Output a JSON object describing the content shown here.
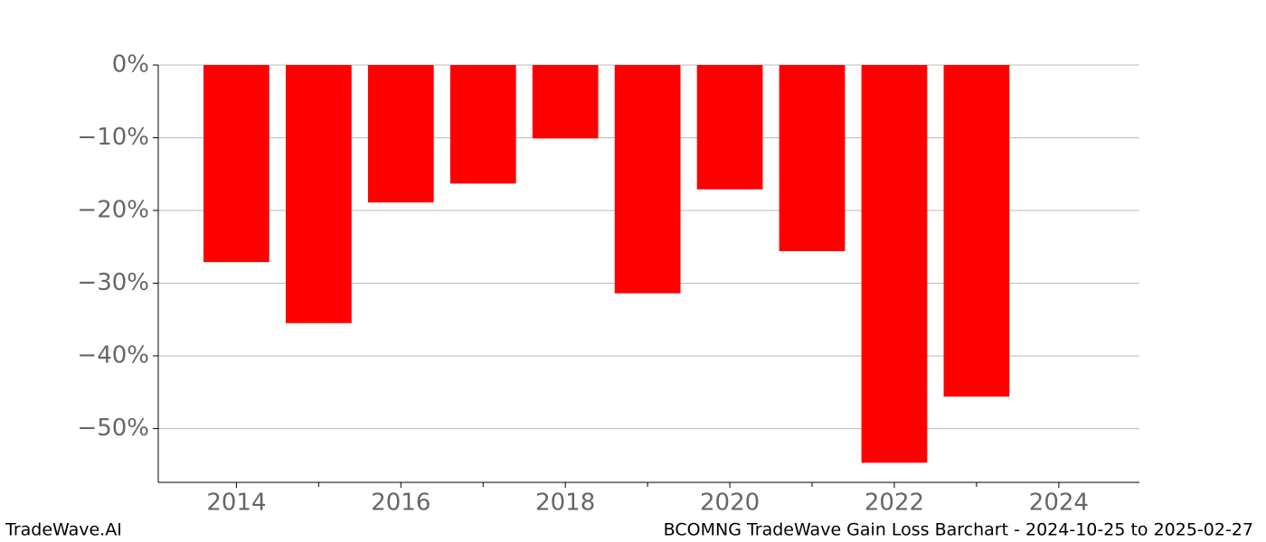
{
  "chart_data": {
    "type": "bar",
    "title": "BCOMNG TradeWave Gain Loss Barchart - 2024-10-25 to 2025-02-27",
    "watermark": "TradeWave.AI",
    "x": [
      2014,
      2015,
      2016,
      2017,
      2018,
      2019,
      2020,
      2021,
      2022,
      2023
    ],
    "values": [
      -27.1,
      -35.5,
      -18.9,
      -16.3,
      -10.1,
      -31.4,
      -17.1,
      -25.6,
      -54.7,
      -45.6
    ],
    "color": "#ff0000",
    "xlim": [
      2013.05,
      2024.98
    ],
    "xticks": [
      2014,
      2016,
      2018,
      2020,
      2022,
      2024
    ],
    "xticks_minor": [
      2015,
      2017,
      2019,
      2021,
      2023
    ],
    "ylim": [
      -57.4,
      0
    ],
    "yticks": [
      {
        "value": 0,
        "label": "0%"
      },
      {
        "value": -10,
        "label": "−10%"
      },
      {
        "value": -20,
        "label": "−20%"
      },
      {
        "value": -30,
        "label": "−30%"
      },
      {
        "value": -40,
        "label": "−40%"
      },
      {
        "value": -50,
        "label": "−50%"
      }
    ],
    "grid": true
  }
}
